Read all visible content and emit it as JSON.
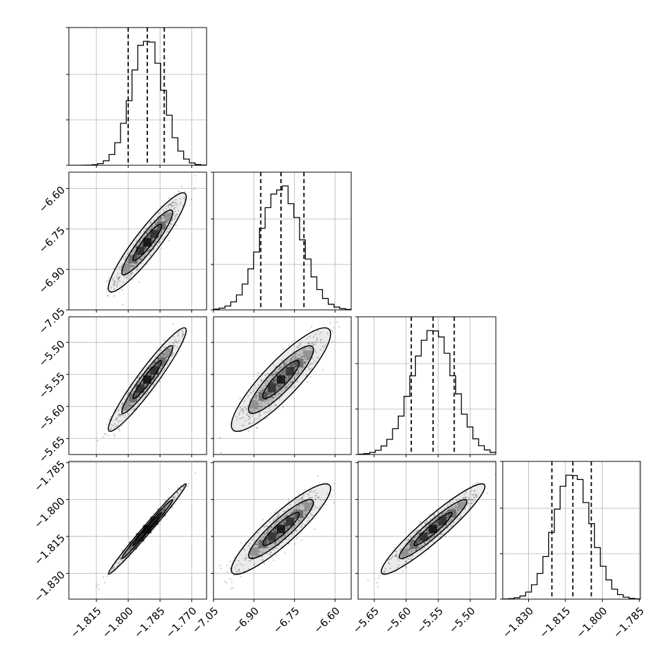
{
  "chart_data": {
    "type": "corner",
    "grid": true,
    "parameters": [
      {
        "range": [
          -1.828,
          -1.763
        ],
        "ticks": [
          -1.815,
          -1.8,
          -1.785,
          -1.77
        ],
        "tick_labels": [
          "−1.815",
          "−1.800",
          "−1.785",
          "−1.770"
        ],
        "quantiles": [
          -1.8,
          -1.791,
          -1.783
        ],
        "peak": -1.791,
        "sigma": 0.0075
      },
      {
        "range": [
          -7.05,
          -6.54
        ],
        "ticks": [
          -7.05,
          -6.9,
          -6.75,
          -6.6
        ],
        "tick_labels": [
          "−7.05",
          "−6.90",
          "−6.75",
          "−6.60"
        ],
        "quantiles": [
          -6.875,
          -6.8,
          -6.715
        ],
        "peak": -6.8,
        "sigma": 0.075
      },
      {
        "range": [
          -5.675,
          -5.46
        ],
        "ticks": [
          -5.65,
          -5.6,
          -5.55,
          -5.5
        ],
        "tick_labels": [
          "−5.65",
          "−5.60",
          "−5.55",
          "−5.50"
        ],
        "quantiles": [
          -5.592,
          -5.558,
          -5.525
        ],
        "peak": -5.558,
        "sigma": 0.033
      },
      {
        "range": [
          -1.8405,
          -1.7845
        ],
        "ticks": [
          -1.83,
          -1.815,
          -1.8,
          -1.785
        ],
        "tick_labels": [
          "−1.830",
          "−1.815",
          "−1.800",
          "−1.785"
        ],
        "quantiles": [
          -1.8205,
          -1.812,
          -1.8045
        ],
        "peak": -1.812,
        "sigma": 0.0075
      }
    ],
    "correlations": [
      [
        1,
        0.92,
        0.95,
        0.99
      ],
      [
        0.92,
        1,
        0.88,
        0.9
      ],
      [
        0.95,
        0.88,
        1,
        0.94
      ],
      [
        0.99,
        0.9,
        0.94,
        1
      ]
    ]
  }
}
